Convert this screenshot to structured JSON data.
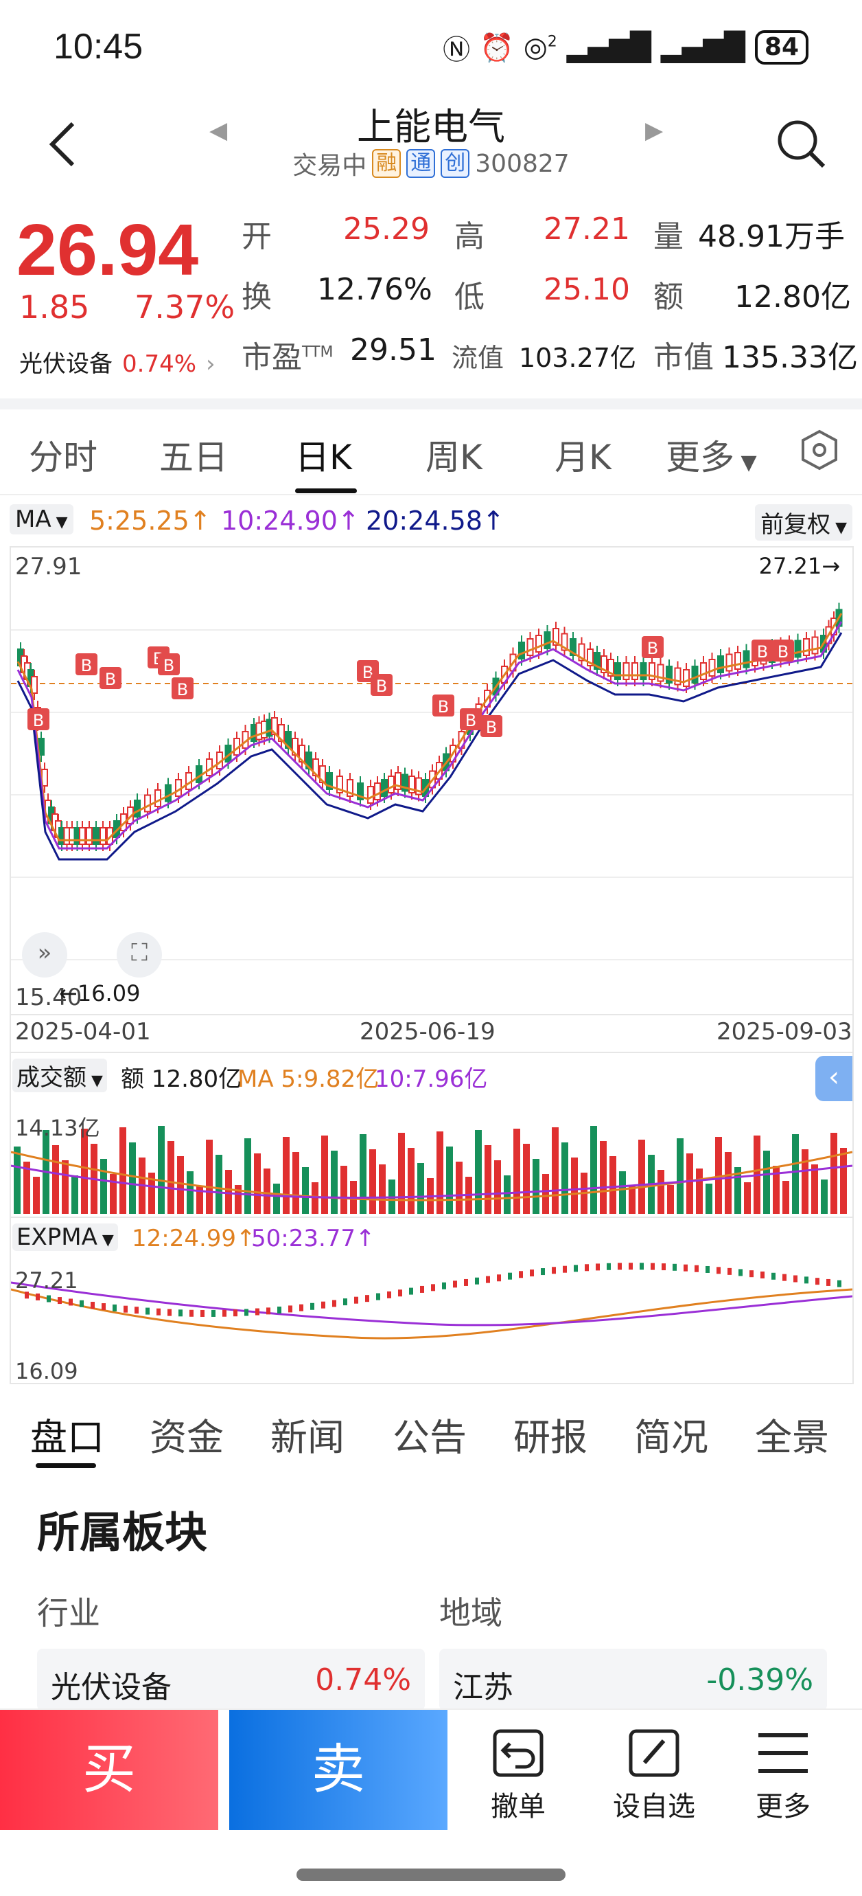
{
  "status": {
    "time": "10:45",
    "battery": "84",
    "signal_label": "2"
  },
  "header": {
    "title": "上能电气",
    "trade_status": "交易中",
    "tags": [
      "融",
      "通",
      "创"
    ],
    "code": "300827"
  },
  "quote": {
    "price": "26.94",
    "change": "1.85",
    "change_pct": "7.37%",
    "sector_name": "光伏设备",
    "sector_pct": "0.74%",
    "fields": [
      {
        "label": "开",
        "value": "25.29"
      },
      {
        "label": "高",
        "value": "27.21"
      },
      {
        "label": "量",
        "value": "48.91万手"
      },
      {
        "label": "换",
        "value": "12.76%"
      },
      {
        "label": "低",
        "value": "25.10"
      },
      {
        "label": "额",
        "value": "12.80亿"
      },
      {
        "label": "市盈",
        "value": "29.51",
        "sup": "TTM"
      },
      {
        "label": "流值",
        "value": "103.27亿"
      },
      {
        "label": "市值",
        "value": "135.33亿"
      }
    ]
  },
  "tabs": [
    "分时",
    "五日",
    "日K",
    "周K",
    "月K",
    "更多"
  ],
  "ma": {
    "button": "MA",
    "ma5": "5:25.25↑",
    "ma10": "10:24.90↑",
    "ma20": "20:24.58↑",
    "adjust": "前复权"
  },
  "kline": {
    "y_high": "27.91",
    "y_low": "15.40",
    "max_label": "27.21→",
    "min_label": "←16.09",
    "dates": [
      "2025-04-01",
      "2025-06-19",
      "2025-09-03"
    ],
    "signal_label": "B"
  },
  "volume": {
    "button": "成交额",
    "amount": "额 12.80亿",
    "ma5": "MA 5:9.82亿",
    "ma10": "10:7.96亿",
    "max": "14.13亿"
  },
  "expma": {
    "button": "EXPMA",
    "e12": "12:24.99↑",
    "e50": "50:23.77↑",
    "top": "27.21",
    "bottom": "16.09"
  },
  "bottom_tabs": [
    "盘口",
    "资金",
    "新闻",
    "公告",
    "研报",
    "简况",
    "全景"
  ],
  "section": {
    "title": "所属板块",
    "industry_label": "行业",
    "region_label": "地域",
    "industry": {
      "name": "光伏设备",
      "pct": "0.74%"
    },
    "region": {
      "name": "江苏",
      "pct": "-0.39%"
    }
  },
  "footer": {
    "buy": "买",
    "sell": "卖",
    "cancel": "撤单",
    "watch": "设自选",
    "more": "更多"
  },
  "colors": {
    "up": "#e03030",
    "down": "#16905a",
    "ma5": "#e08020",
    "ma10": "#9a2fd6",
    "ma20": "#101a8a"
  }
}
